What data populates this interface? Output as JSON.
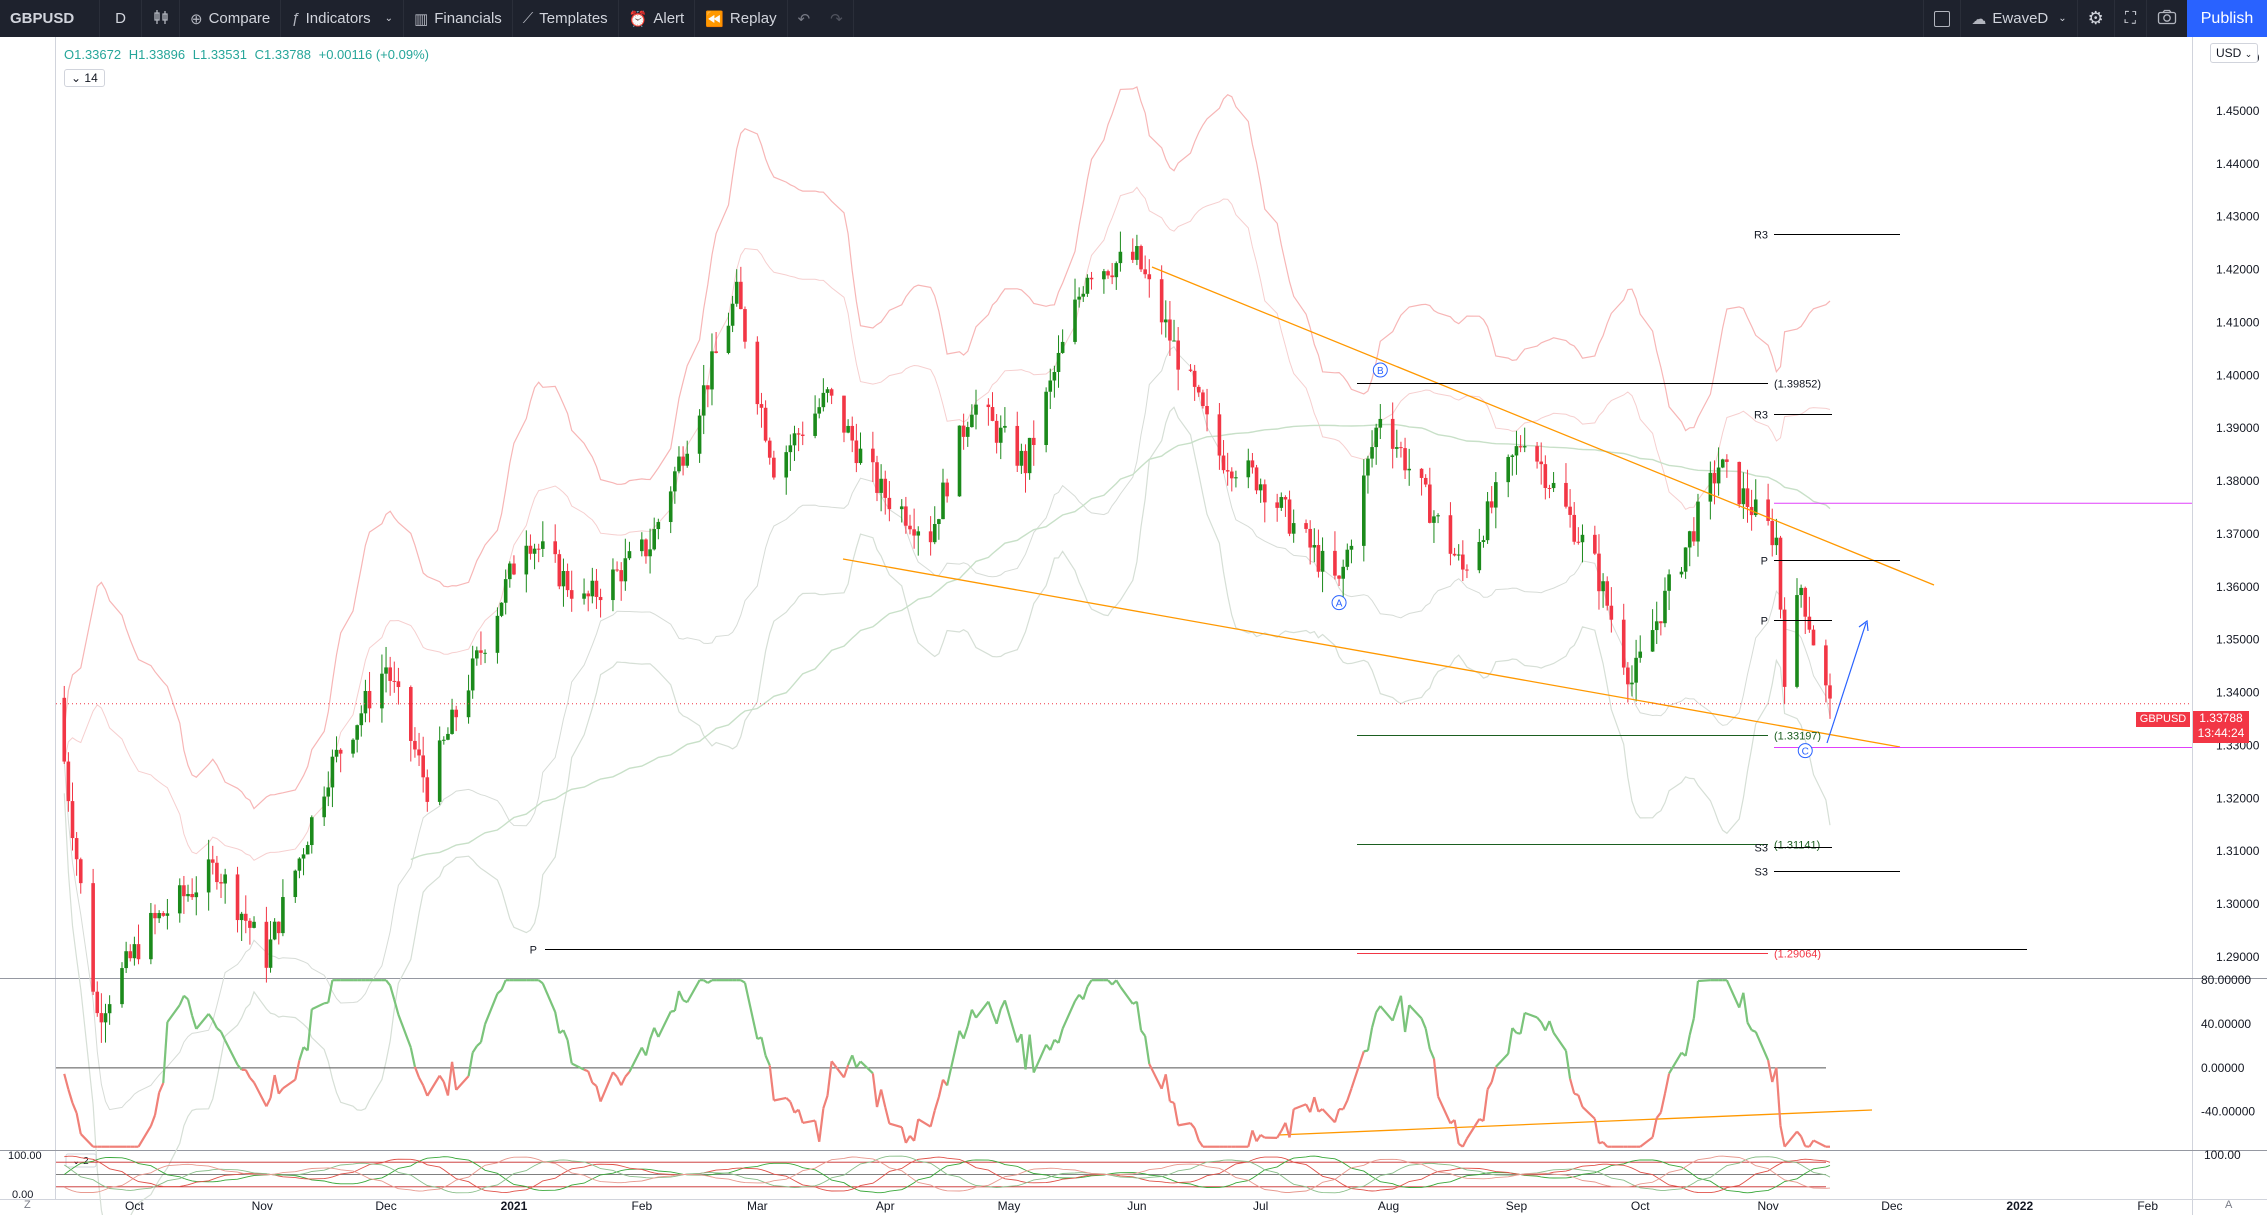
{
  "toolbar": {
    "symbol": "GBPUSD",
    "interval": "D",
    "compare_label": "Compare",
    "indicators_label": "Indicators",
    "financials_label": "Financials",
    "templates_label": "Templates",
    "alert_label": "Alert",
    "replay_label": "Replay",
    "user_label": "EwaveD",
    "publish_label": "Publish"
  },
  "legend": {
    "open": "O1.33672",
    "high": "H1.33896",
    "low": "L1.33531",
    "close": "C1.33788",
    "change": "+0.00116 (+0.09%)",
    "collapsed_count": "14"
  },
  "currency": "USD",
  "last_price": {
    "symbol": "GBPUSD",
    "price": "1.33788",
    "countdown": "13:44:24"
  },
  "colors": {
    "up": "#1b8a1b",
    "down": "#f23645",
    "accent": "#2962ff",
    "trendline": "#ff9800",
    "pivot_magenta": "#e040fb"
  },
  "chart_data": {
    "type": "candlestick",
    "price_axis": [
      "1.46000",
      "1.45000",
      "1.44000",
      "1.43000",
      "1.42000",
      "1.41000",
      "1.40000",
      "1.39000",
      "1.38000",
      "1.37000",
      "1.36000",
      "1.35000",
      "1.34000",
      "1.33000",
      "1.32000",
      "1.31000",
      "1.30000",
      "1.29000"
    ],
    "ylim": [
      1.286,
      1.464
    ],
    "time_axis": [
      {
        "label": "Oct",
        "x": "2020-10-01"
      },
      {
        "label": "Nov",
        "x": "2020-11-01"
      },
      {
        "label": "Dec",
        "x": "2020-12-01"
      },
      {
        "label": "2021",
        "x": "2021-01-01"
      },
      {
        "label": "Feb",
        "x": "2021-02-01"
      },
      {
        "label": "Mar",
        "x": "2021-03-01"
      },
      {
        "label": "Apr",
        "x": "2021-04-01"
      },
      {
        "label": "May",
        "x": "2021-05-01"
      },
      {
        "label": "Jun",
        "x": "2021-06-01"
      },
      {
        "label": "Jul",
        "x": "2021-07-01"
      },
      {
        "label": "Aug",
        "x": "2021-08-01"
      },
      {
        "label": "Sep",
        "x": "2021-09-01"
      },
      {
        "label": "Oct",
        "x": "2021-10-01"
      },
      {
        "label": "Nov",
        "x": "2021-11-01"
      },
      {
        "label": "Dec",
        "x": "2021-12-01"
      },
      {
        "label": "2022",
        "x": "2022-01-01"
      },
      {
        "label": "Feb",
        "x": "2022-02-01"
      }
    ],
    "price_path": [
      {
        "x": "2020-09-12",
        "y": 1.339
      },
      {
        "x": "2020-09-22",
        "y": 1.279
      },
      {
        "x": "2020-10-05",
        "y": 1.296
      },
      {
        "x": "2020-10-21",
        "y": 1.307
      },
      {
        "x": "2020-11-02",
        "y": 1.29
      },
      {
        "x": "2020-11-17",
        "y": 1.325
      },
      {
        "x": "2020-12-01",
        "y": 1.345
      },
      {
        "x": "2020-12-11",
        "y": 1.322
      },
      {
        "x": "2021-01-04",
        "y": 1.37
      },
      {
        "x": "2021-01-18",
        "y": 1.357
      },
      {
        "x": "2021-02-03",
        "y": 1.368
      },
      {
        "x": "2021-02-24",
        "y": 1.415
      },
      {
        "x": "2021-03-05",
        "y": 1.383
      },
      {
        "x": "2021-03-18",
        "y": 1.396
      },
      {
        "x": "2021-03-31",
        "y": 1.378
      },
      {
        "x": "2021-04-12",
        "y": 1.37
      },
      {
        "x": "2021-04-22",
        "y": 1.395
      },
      {
        "x": "2021-05-05",
        "y": 1.383
      },
      {
        "x": "2021-05-20",
        "y": 1.42
      },
      {
        "x": "2021-06-01",
        "y": 1.422
      },
      {
        "x": "2021-06-21",
        "y": 1.385
      },
      {
        "x": "2021-07-01",
        "y": 1.38
      },
      {
        "x": "2021-07-20",
        "y": 1.36
      },
      {
        "x": "2021-07-30",
        "y": 1.393
      },
      {
        "x": "2021-08-19",
        "y": 1.363
      },
      {
        "x": "2021-09-03",
        "y": 1.389
      },
      {
        "x": "2021-09-20",
        "y": 1.364
      },
      {
        "x": "2021-09-29",
        "y": 1.342
      },
      {
        "x": "2021-10-20",
        "y": 1.383
      },
      {
        "x": "2021-11-03",
        "y": 1.369
      },
      {
        "x": "2021-11-05",
        "y": 1.344
      },
      {
        "x": "2021-11-09",
        "y": 1.36
      },
      {
        "x": "2021-11-16",
        "y": 1.337
      }
    ],
    "wave_labels": [
      {
        "label": "A",
        "x": "2021-07-20",
        "y": 1.357
      },
      {
        "label": "B",
        "x": "2021-07-30",
        "y": 1.401
      },
      {
        "label": "C",
        "x": "2021-11-10",
        "y": 1.329
      }
    ],
    "horizontal_levels": [
      {
        "label": "(1.39852)",
        "y": 1.39852
      },
      {
        "label": "(1.33197)",
        "y": 1.33197
      },
      {
        "label": "(1.31141)",
        "y": 1.31141
      },
      {
        "label": "(1.29064)",
        "y": 1.29064
      },
      {
        "label": "R3",
        "y": 1.4268
      },
      {
        "label": "R3",
        "y": 1.3927
      },
      {
        "label": "P",
        "y": 1.3651
      },
      {
        "label": "P",
        "y": 1.3538
      },
      {
        "label": "S3",
        "y": 1.3107
      },
      {
        "label": "S3",
        "y": 1.3063
      },
      {
        "label": "P",
        "y": 1.2914
      }
    ],
    "oscillator": {
      "axis_labels": [
        "80.00000",
        "40.00000",
        "0.00000",
        "-40.00000"
      ],
      "ylim": [
        -75,
        82
      ]
    },
    "stoch": {
      "axis_labels": [
        "100.00",
        "0.00"
      ],
      "period_label": "2"
    },
    "stoch_right_label": "100.00"
  },
  "bottom_left": "Z",
  "bottom_right": "A"
}
